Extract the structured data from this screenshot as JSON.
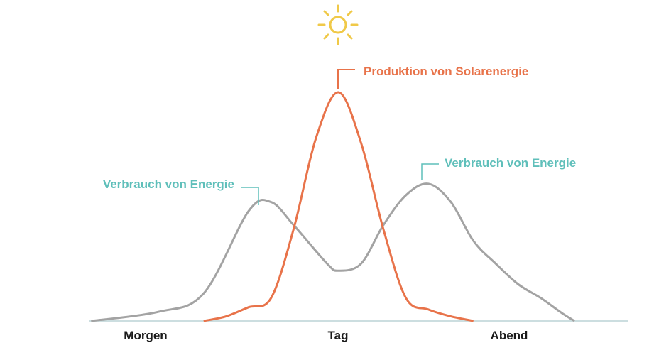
{
  "chart_data": {
    "type": "line",
    "title": "",
    "xlabel": "",
    "ylabel": "",
    "categories": [
      "Morgen",
      "Tag",
      "Abend"
    ],
    "x": [
      0,
      1,
      2,
      3,
      4,
      5,
      6,
      7,
      8,
      9,
      10,
      11,
      12,
      13,
      14,
      15,
      16,
      17,
      18,
      19,
      20,
      21,
      22,
      23,
      24
    ],
    "xlim": [
      0,
      24
    ],
    "ylim": [
      0,
      100
    ],
    "grid": false,
    "legend": "none",
    "series": [
      {
        "name": "Verbrauch von Energie",
        "color": "#a3a3a3",
        "points": [
          [
            2,
            0
          ],
          [
            5,
            4
          ],
          [
            7,
            12
          ],
          [
            9,
            48
          ],
          [
            10,
            52
          ],
          [
            11,
            42
          ],
          [
            12.5,
            25
          ],
          [
            13,
            22
          ],
          [
            14,
            25
          ],
          [
            15,
            42
          ],
          [
            16,
            55
          ],
          [
            17,
            60
          ],
          [
            18,
            52
          ],
          [
            19,
            35
          ],
          [
            20,
            25
          ],
          [
            21,
            16
          ],
          [
            22,
            10
          ],
          [
            23,
            3
          ],
          [
            23.5,
            0
          ]
        ]
      },
      {
        "name": "Produktion von Solarenergie",
        "color": "#e8734a",
        "points": [
          [
            7,
            0
          ],
          [
            8,
            2
          ],
          [
            9,
            6
          ],
          [
            10,
            10
          ],
          [
            11,
            40
          ],
          [
            12,
            80
          ],
          [
            13,
            100
          ],
          [
            14,
            78
          ],
          [
            15,
            40
          ],
          [
            16,
            10
          ],
          [
            17,
            5
          ],
          [
            18,
            2
          ],
          [
            19,
            0
          ]
        ]
      }
    ],
    "annotations": [
      {
        "text": "Produktion von Solarenergie",
        "color": "#e8734a"
      },
      {
        "text": "Verbrauch von Energie",
        "color": "#5fbfba"
      },
      {
        "text": "Verbrauch von Energie",
        "color": "#5fbfba"
      }
    ],
    "icon": "sun-icon",
    "icon_color": "#f0c948",
    "baseline_color": "#bcd4d6"
  }
}
